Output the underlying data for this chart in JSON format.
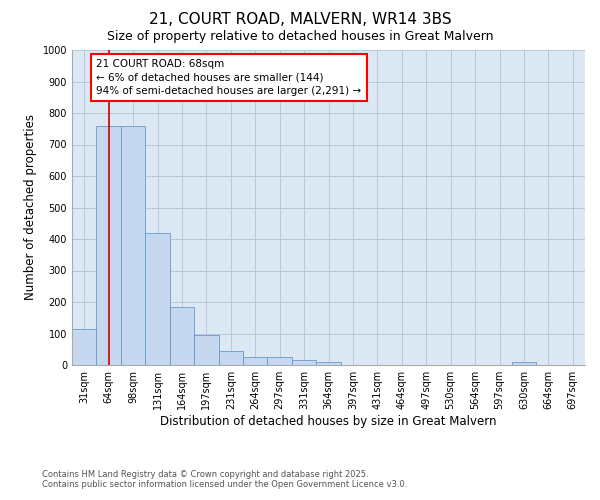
{
  "title": "21, COURT ROAD, MALVERN, WR14 3BS",
  "subtitle": "Size of property relative to detached houses in Great Malvern",
  "xlabel": "Distribution of detached houses by size in Great Malvern",
  "ylabel": "Number of detached properties",
  "footnote1": "Contains HM Land Registry data © Crown copyright and database right 2025.",
  "footnote2": "Contains public sector information licensed under the Open Government Licence v3.0.",
  "annotation_line1": "21 COURT ROAD: 68sqm",
  "annotation_line2": "← 6% of detached houses are smaller (144)",
  "annotation_line3": "94% of semi-detached houses are larger (2,291) →",
  "bar_color": "#c5d8f0",
  "bar_edge_color": "#6699cc",
  "grid_color": "#b8c8dc",
  "bg_color": "#dce8f4",
  "vline_color": "#cc0000",
  "vline_x": 1,
  "bins": [
    0,
    1,
    2,
    3,
    4,
    5,
    6,
    7,
    8,
    9,
    10,
    11,
    12,
    13,
    14,
    15,
    16,
    17,
    18,
    19,
    20
  ],
  "bin_labels": [
    "31sqm",
    "64sqm",
    "98sqm",
    "131sqm",
    "164sqm",
    "197sqm",
    "231sqm",
    "264sqm",
    "297sqm",
    "331sqm",
    "364sqm",
    "397sqm",
    "431sqm",
    "464sqm",
    "497sqm",
    "530sqm",
    "564sqm",
    "597sqm",
    "630sqm",
    "664sqm",
    "697sqm"
  ],
  "heights": [
    115,
    760,
    760,
    420,
    185,
    95,
    45,
    25,
    25,
    15,
    10,
    0,
    0,
    0,
    0,
    0,
    0,
    0,
    8,
    0,
    0
  ],
  "ylim": [
    0,
    1000
  ],
  "yticks": [
    0,
    100,
    200,
    300,
    400,
    500,
    600,
    700,
    800,
    900,
    1000
  ],
  "title_fontsize": 11,
  "subtitle_fontsize": 9,
  "tick_fontsize": 7,
  "axis_label_fontsize": 8.5,
  "annotation_fontsize": 7.5,
  "footnote_fontsize": 6
}
